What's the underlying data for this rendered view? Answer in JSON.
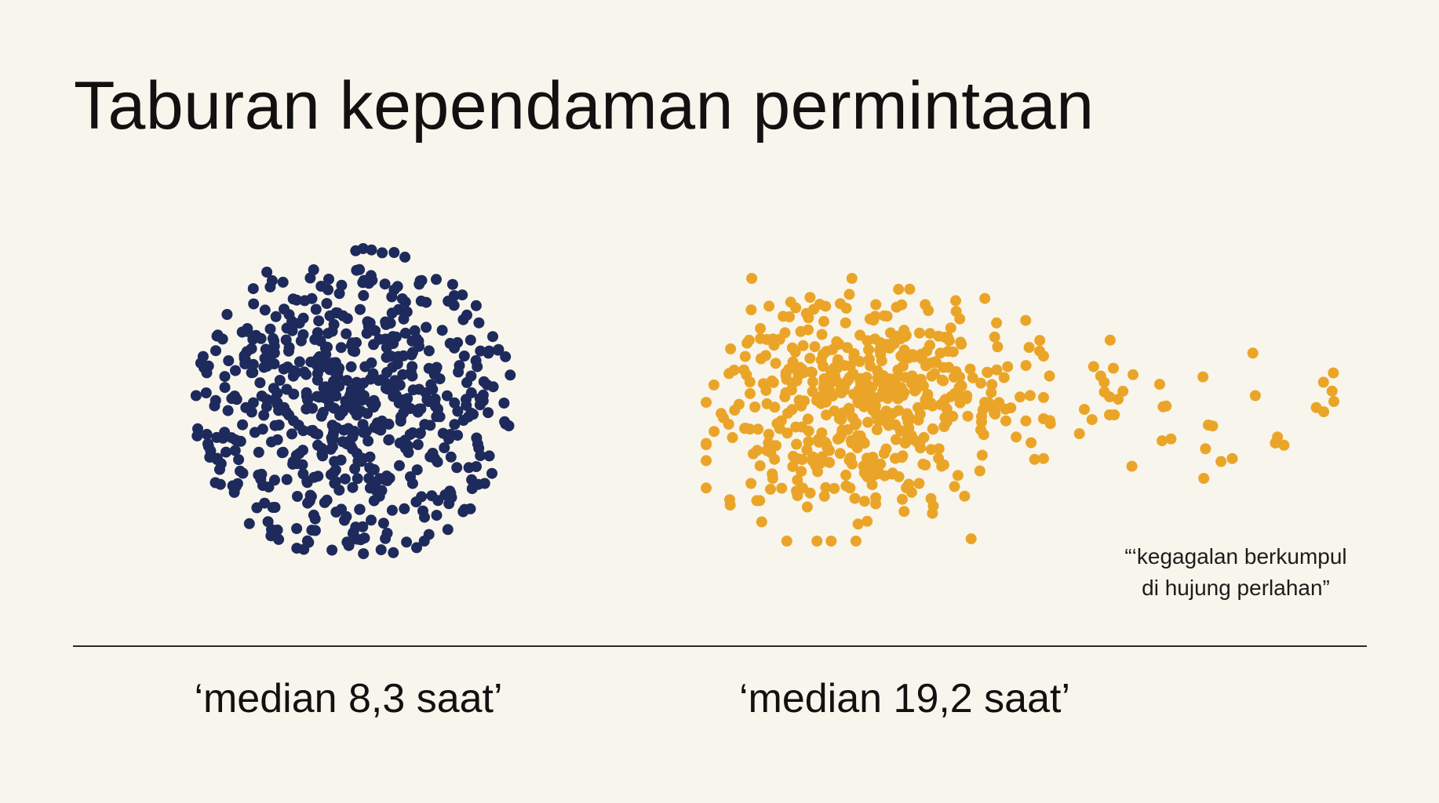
{
  "title": "Taburan kependaman permintaan",
  "annotation": {
    "line1": "“‘kegagalan berkumpul",
    "line2": "di hujung perlahan”"
  },
  "chart_data": {
    "type": "scatter",
    "title": "Taburan kependaman permintaan",
    "xlabel": "",
    "ylabel": "",
    "grid": false,
    "series": [
      {
        "label": "‘median 8,3 saat’",
        "median": 8.3,
        "unit": "saat",
        "color": "#1d2a5b",
        "shape": "compact-symmetric-cluster",
        "approx_points": 620
      },
      {
        "label": "‘median 19,2 saat’",
        "median": 19.2,
        "unit": "saat",
        "color": "#eaa528",
        "shape": "cluster-with-long-right-tail",
        "approx_points": 560
      }
    ]
  }
}
